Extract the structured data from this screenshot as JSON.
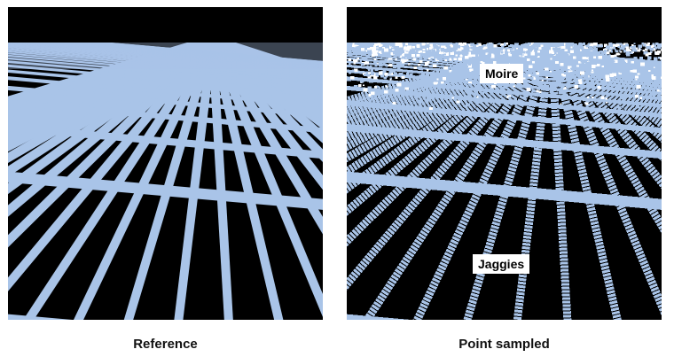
{
  "panels": {
    "reference": {
      "caption": "Reference"
    },
    "point_sampled": {
      "caption": "Point sampled",
      "annotations": {
        "moire": "Moire",
        "jaggies": "Jaggies"
      }
    }
  },
  "colors": {
    "grid_line": "#a9c4e8",
    "background": "#000000",
    "page": "#ffffff"
  }
}
